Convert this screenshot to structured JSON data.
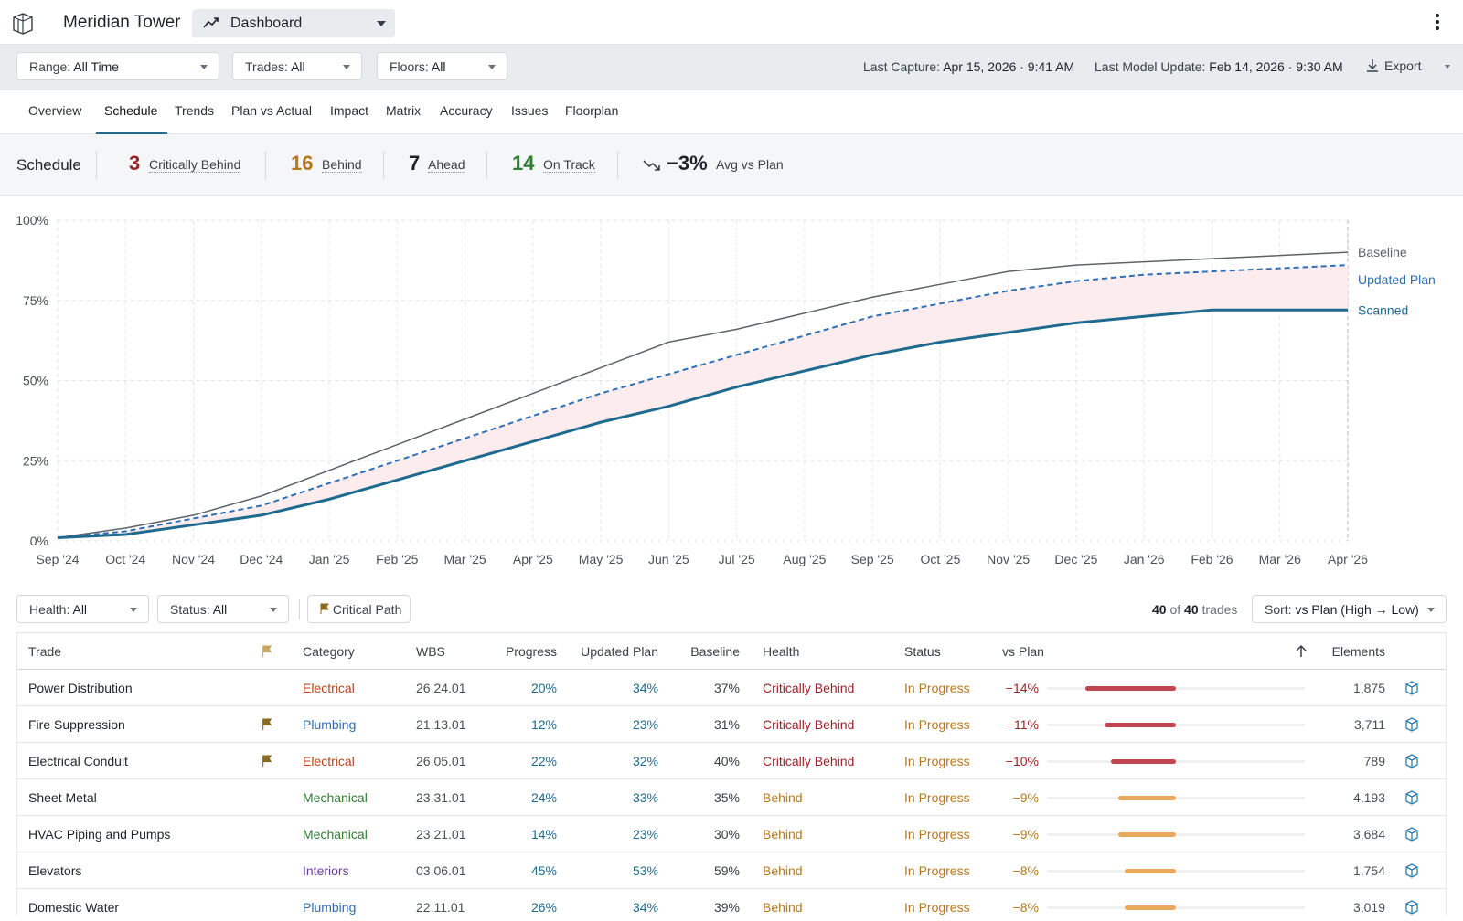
{
  "app": {
    "title": "Meridian Tower",
    "view_label": "Dashboard"
  },
  "filters": {
    "range": {
      "label": "Range:",
      "value": "All Time"
    },
    "trades": {
      "label": "Trades:",
      "value": "All"
    },
    "floors": {
      "label": "Floors:",
      "value": "All"
    },
    "last_capture_label": "Last Capture:",
    "last_capture_value": "Apr 15, 2026 · 9:41 AM",
    "last_model_label": "Last Model Update:",
    "last_model_value": "Feb 14, 2026 · 9:30 AM",
    "export_label": "Export"
  },
  "tabs": [
    "Overview",
    "Schedule",
    "Trends",
    "Plan vs Actual",
    "Impact",
    "Matrix",
    "Accuracy",
    "Issues",
    "Floorplan"
  ],
  "active_tab": "Schedule",
  "summary": {
    "title": "Schedule",
    "critically_behind": {
      "count": "3",
      "label": "Critically Behind",
      "color": "#9b2226"
    },
    "behind": {
      "count": "16",
      "label": "Behind",
      "color": "#b5791c"
    },
    "ahead": {
      "count": "7",
      "label": "Ahead",
      "color": "#1f2328"
    },
    "on_track": {
      "count": "14",
      "label": "On Track",
      "color": "#2e7d32"
    },
    "avg_value": "−3%",
    "avg_label": "Avg vs Plan"
  },
  "chart_data": {
    "type": "line",
    "x": [
      "Sep '24",
      "Oct '24",
      "Nov '24",
      "Dec '24",
      "Jan '25",
      "Feb '25",
      "Mar '25",
      "Apr '25",
      "May '25",
      "Jun '25",
      "Jul '25",
      "Aug '25",
      "Sep '25",
      "Oct '25",
      "Nov '25",
      "Dec '25",
      "Jan '26",
      "Feb '26",
      "Mar '26",
      "Apr '26"
    ],
    "yticks": [
      "0%",
      "25%",
      "50%",
      "75%",
      "100%"
    ],
    "ylim": [
      0,
      100
    ],
    "series": [
      {
        "name": "Baseline",
        "color": "#5f6368",
        "style": "solid",
        "values": [
          1,
          4,
          8,
          14,
          22,
          30,
          38,
          46,
          54,
          62,
          66,
          71,
          76,
          80,
          84,
          86,
          87,
          88,
          89,
          90
        ]
      },
      {
        "name": "Updated Plan",
        "color": "#2e6fb5",
        "style": "dashed",
        "values": [
          1,
          3,
          7,
          11,
          18,
          25,
          32,
          39,
          46,
          52,
          58,
          64,
          70,
          74,
          78,
          81,
          83,
          84,
          85,
          86
        ]
      },
      {
        "name": "Scanned",
        "color": "#1f6a8f",
        "style": "solid-thick",
        "values": [
          1,
          2,
          5,
          8,
          13,
          19,
          25,
          31,
          37,
          42,
          48,
          53,
          58,
          62,
          65,
          68,
          70,
          72,
          72,
          72
        ]
      }
    ],
    "fill_between": [
      "Updated Plan",
      "Scanned"
    ],
    "fill_color": "#fdecee"
  },
  "table_controls": {
    "health": {
      "label": "Health:",
      "value": "All"
    },
    "status": {
      "label": "Status:",
      "value": "All"
    },
    "critical_path_label": "Critical Path",
    "count_shown": "40",
    "count_of": "of",
    "count_total": "40",
    "count_unit": "trades",
    "sort_label": "Sort:",
    "sort_value": "vs Plan (High → Low)"
  },
  "table": {
    "headers": {
      "trade": "Trade",
      "category": "Category",
      "wbs": "WBS",
      "progress": "Progress",
      "updated_plan": "Updated Plan",
      "baseline": "Baseline",
      "health": "Health",
      "status": "Status",
      "vs_plan": "vs Plan",
      "elements": "Elements"
    },
    "rows": [
      {
        "trade": "Power Distribution",
        "flag": false,
        "category": "Electrical",
        "wbs": "26.24.01",
        "progress": "20%",
        "updated_plan": "34%",
        "baseline": "37%",
        "health": "Critically Behind",
        "status": "In Progress",
        "vs_plan": "−14%",
        "vs_plan_value": -14,
        "elements": "1,875"
      },
      {
        "trade": "Fire Suppression",
        "flag": true,
        "category": "Plumbing",
        "wbs": "21.13.01",
        "progress": "12%",
        "updated_plan": "23%",
        "baseline": "31%",
        "health": "Critically Behind",
        "status": "In Progress",
        "vs_plan": "−11%",
        "vs_plan_value": -11,
        "elements": "3,711"
      },
      {
        "trade": "Electrical Conduit",
        "flag": true,
        "category": "Electrical",
        "wbs": "26.05.01",
        "progress": "22%",
        "updated_plan": "32%",
        "baseline": "40%",
        "health": "Critically Behind",
        "status": "In Progress",
        "vs_plan": "−10%",
        "vs_plan_value": -10,
        "elements": "789"
      },
      {
        "trade": "Sheet Metal",
        "flag": false,
        "category": "Mechanical",
        "wbs": "23.31.01",
        "progress": "24%",
        "updated_plan": "33%",
        "baseline": "35%",
        "health": "Behind",
        "status": "In Progress",
        "vs_plan": "−9%",
        "vs_plan_value": -9,
        "elements": "4,193"
      },
      {
        "trade": "HVAC Piping and Pumps",
        "flag": false,
        "category": "Mechanical",
        "wbs": "23.21.01",
        "progress": "14%",
        "updated_plan": "23%",
        "baseline": "30%",
        "health": "Behind",
        "status": "In Progress",
        "vs_plan": "−9%",
        "vs_plan_value": -9,
        "elements": "3,684"
      },
      {
        "trade": "Elevators",
        "flag": false,
        "category": "Interiors",
        "wbs": "03.06.01",
        "progress": "45%",
        "updated_plan": "53%",
        "baseline": "59%",
        "health": "Behind",
        "status": "In Progress",
        "vs_plan": "−8%",
        "vs_plan_value": -8,
        "elements": "1,754"
      },
      {
        "trade": "Domestic Water",
        "flag": false,
        "category": "Plumbing",
        "wbs": "22.11.01",
        "progress": "26%",
        "updated_plan": "34%",
        "baseline": "39%",
        "health": "Behind",
        "status": "In Progress",
        "vs_plan": "−8%",
        "vs_plan_value": -8,
        "elements": "3,019"
      }
    ]
  },
  "colors": {
    "electrical": "#b5451b",
    "plumbing": "#2e6fb5",
    "mechanical": "#2e7d32",
    "interiors": "#6a3d9a",
    "critical": "#9b2226",
    "behind": "#b5791c",
    "in_progress": "#b5791c",
    "accent": "#1f6a8f",
    "bar_critical": "#c0454f",
    "bar_behind": "#e9a95a"
  },
  "icons": {
    "logo": "building-logo-icon",
    "view": "trend-line-icon",
    "menu": "kebab-menu-icon",
    "export": "download-icon",
    "trend": "trending-down-icon",
    "flag": "flag-icon",
    "sort": "arrow-up-icon",
    "element": "cube-icon"
  }
}
